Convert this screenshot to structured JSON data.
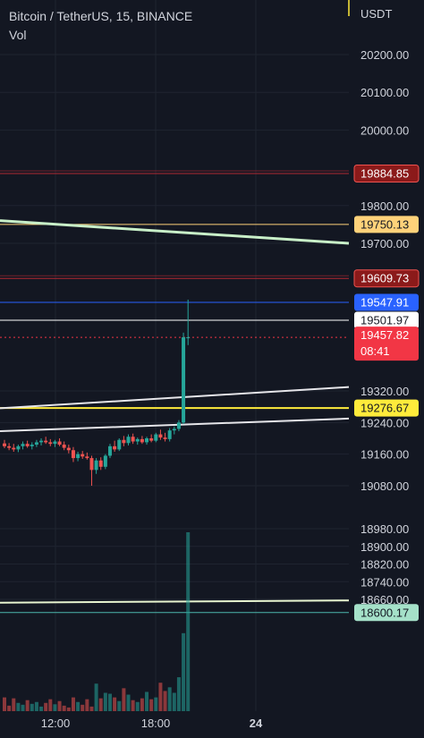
{
  "header": {
    "symbol": "Bitcoin / TetherUS, 15, BINANCE",
    "volume_label": "Vol"
  },
  "colors": {
    "background": "#131722",
    "grid": "#1f2430",
    "up": "#26a69a",
    "down": "#ef5350",
    "axis_text": "#d1d4dc"
  },
  "chart_data": {
    "type": "candlestick",
    "currency": "USDT",
    "y_ticks": [
      "20200.00",
      "20100.00",
      "20000.00",
      "19800.00",
      "19700.00",
      "19320.00",
      "19240.00",
      "19160.00",
      "19080.00",
      "18980.00",
      "18900.00",
      "18820.00",
      "18740.00",
      "18660.00"
    ],
    "x_ticks": [
      "12:00",
      "18:00",
      "24"
    ],
    "price_badges": [
      {
        "value": "19884.85",
        "bg": "#8b1a1a",
        "fg": "#ffffff"
      },
      {
        "value": "19750.13",
        "bg": "#ffd27a",
        "fg": "#131722"
      },
      {
        "value": "19609.73",
        "bg": "#8b1a1a",
        "fg": "#ffffff"
      },
      {
        "value": "19547.91",
        "bg": "#2962ff",
        "fg": "#ffffff"
      },
      {
        "value": "19501.97",
        "bg": "#ffffff",
        "fg": "#131722"
      },
      {
        "value": "19457.82",
        "bg": "#f23645",
        "fg": "#ffffff"
      },
      {
        "value": "19276.67",
        "bg": "#ffeb3b",
        "fg": "#131722"
      },
      {
        "value": "18600.17",
        "bg": "#a5e1c9",
        "fg": "#131722"
      }
    ],
    "countdown": "08:41",
    "candles": [
      [
        19187,
        19196,
        19175,
        19180
      ],
      [
        19180,
        19188,
        19170,
        19176
      ],
      [
        19176,
        19186,
        19166,
        19172
      ],
      [
        19172,
        19184,
        19165,
        19180
      ],
      [
        19180,
        19192,
        19172,
        19186
      ],
      [
        19186,
        19194,
        19176,
        19180
      ],
      [
        19180,
        19190,
        19172,
        19184
      ],
      [
        19184,
        19196,
        19178,
        19190
      ],
      [
        19190,
        19200,
        19182,
        19194
      ],
      [
        19194,
        19204,
        19186,
        19190
      ],
      [
        19190,
        19198,
        19180,
        19186
      ],
      [
        19186,
        19196,
        19178,
        19192
      ],
      [
        19192,
        19200,
        19180,
        19184
      ],
      [
        19184,
        19192,
        19170,
        19176
      ],
      [
        19176,
        19184,
        19162,
        19170
      ],
      [
        19170,
        19178,
        19140,
        19150
      ],
      [
        19150,
        19166,
        19142,
        19160
      ],
      [
        19160,
        19168,
        19148,
        19154
      ],
      [
        19154,
        19164,
        19146,
        19150
      ],
      [
        19150,
        19156,
        19080,
        19120
      ],
      [
        19120,
        19150,
        19110,
        19144
      ],
      [
        19144,
        19152,
        19120,
        19128
      ],
      [
        19128,
        19160,
        19122,
        19156
      ],
      [
        19156,
        19186,
        19150,
        19180
      ],
      [
        19180,
        19194,
        19166,
        19172
      ],
      [
        19172,
        19200,
        19168,
        19196
      ],
      [
        19196,
        19206,
        19180,
        19188
      ],
      [
        19188,
        19210,
        19182,
        19204
      ],
      [
        19204,
        19212,
        19186,
        19192
      ],
      [
        19192,
        19202,
        19184,
        19198
      ],
      [
        19198,
        19206,
        19186,
        19190
      ],
      [
        19190,
        19204,
        19184,
        19200
      ],
      [
        19200,
        19210,
        19190,
        19194
      ],
      [
        19194,
        19214,
        19190,
        19210
      ],
      [
        19210,
        19222,
        19196,
        19202
      ],
      [
        19202,
        19214,
        19192,
        19198
      ],
      [
        19198,
        19226,
        19192,
        19220
      ],
      [
        19220,
        19230,
        19210,
        19224
      ],
      [
        19224,
        19246,
        19218,
        19240
      ],
      [
        19240,
        19470,
        19236,
        19458
      ],
      [
        19458,
        19555,
        19438,
        19458
      ]
    ],
    "volumes": [
      30,
      12,
      28,
      18,
      14,
      24,
      16,
      20,
      10,
      18,
      26,
      15,
      22,
      12,
      8,
      30,
      20,
      14,
      26,
      10,
      60,
      28,
      40,
      38,
      30,
      22,
      50,
      36,
      24,
      20,
      28,
      42,
      26,
      30,
      62,
      44,
      52,
      40,
      74,
      170,
      390
    ]
  }
}
